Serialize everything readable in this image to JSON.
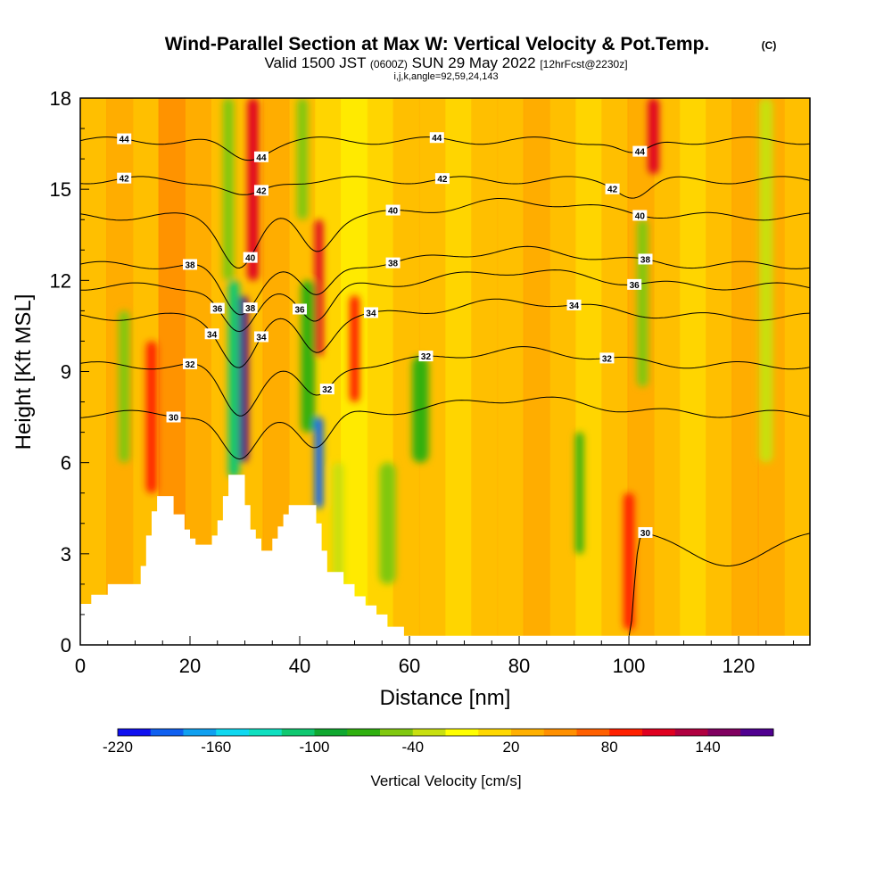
{
  "header": {
    "title": "Wind-Parallel Section at Max W: Vertical Velocity & Pot.Temp.",
    "copyright": "(C)",
    "valid_prefix": "Valid 1500 JST",
    "utc": "(0600Z)",
    "valid_date": "SUN 29 May 2022",
    "forecast": "[12hrFcst@2230z]",
    "indices": "i,j,k,angle=92,59,24,143"
  },
  "chart_data": {
    "type": "heatmap",
    "xlabel": "Distance [nm]",
    "ylabel": "Height [Kft MSL]",
    "xlim": [
      0,
      133
    ],
    "ylim": [
      0,
      18
    ],
    "xticks": [
      "0",
      "20",
      "40",
      "60",
      "80",
      "100",
      "120"
    ],
    "xtick_values": [
      0,
      20,
      40,
      60,
      80,
      100,
      120
    ],
    "yticks": [
      "0",
      "3",
      "6",
      "9",
      "12",
      "15",
      "18"
    ],
    "ytick_values": [
      0,
      3,
      6,
      9,
      12,
      15,
      18
    ],
    "colorbar": {
      "label": "Vertical Velocity [cm/s]",
      "tick_labels": [
        "-220",
        "-160",
        "-100",
        "-40",
        "20",
        "80",
        "140"
      ],
      "colors": [
        "#1010f0",
        "#1060f0",
        "#10a0f0",
        "#10d8f0",
        "#10e0c0",
        "#10c870",
        "#10a830",
        "#30b010",
        "#80c810",
        "#c8e010",
        "#ffff00",
        "#ffd800",
        "#ffb000",
        "#ff9000",
        "#ff6000",
        "#ff2000",
        "#e00020",
        "#b00040",
        "#800060",
        "#500090"
      ]
    },
    "terrain": [
      [
        0,
        1.35
      ],
      [
        2,
        1.35
      ],
      [
        2,
        1.65
      ],
      [
        5,
        1.65
      ],
      [
        5,
        2.0
      ],
      [
        11,
        2.0
      ],
      [
        11,
        2.6
      ],
      [
        12,
        2.6
      ],
      [
        12,
        3.6
      ],
      [
        13,
        3.6
      ],
      [
        13,
        4.4
      ],
      [
        14,
        4.4
      ],
      [
        14,
        4.9
      ],
      [
        17,
        4.9
      ],
      [
        17,
        4.3
      ],
      [
        19,
        4.3
      ],
      [
        19,
        3.8
      ],
      [
        20,
        3.8
      ],
      [
        20,
        3.5
      ],
      [
        21,
        3.5
      ],
      [
        21,
        3.3
      ],
      [
        24,
        3.3
      ],
      [
        24,
        3.6
      ],
      [
        25,
        3.6
      ],
      [
        25,
        4.1
      ],
      [
        26,
        4.1
      ],
      [
        26,
        4.9
      ],
      [
        27,
        4.9
      ],
      [
        27,
        5.6
      ],
      [
        30,
        5.6
      ],
      [
        30,
        4.6
      ],
      [
        31,
        4.6
      ],
      [
        31,
        3.8
      ],
      [
        32,
        3.8
      ],
      [
        32,
        3.5
      ],
      [
        33,
        3.5
      ],
      [
        33,
        3.1
      ],
      [
        35,
        3.1
      ],
      [
        35,
        3.5
      ],
      [
        36,
        3.5
      ],
      [
        36,
        3.9
      ],
      [
        37,
        3.9
      ],
      [
        37,
        4.3
      ],
      [
        38,
        4.3
      ],
      [
        38,
        4.6
      ],
      [
        43,
        4.6
      ],
      [
        43,
        4.0
      ],
      [
        44,
        4.0
      ],
      [
        44,
        3.1
      ],
      [
        45,
        3.1
      ],
      [
        45,
        2.4
      ],
      [
        48,
        2.4
      ],
      [
        48,
        2.0
      ],
      [
        50,
        2.0
      ],
      [
        50,
        1.6
      ],
      [
        52,
        1.6
      ],
      [
        52,
        1.3
      ],
      [
        54,
        1.3
      ],
      [
        54,
        1.0
      ],
      [
        56,
        1.0
      ],
      [
        56,
        0.6
      ],
      [
        59,
        0.6
      ],
      [
        59,
        0.3
      ],
      [
        62,
        0.3
      ],
      [
        62,
        0.3
      ]
    ],
    "w_features": [
      {
        "x": 29.5,
        "y1": 6.0,
        "y2": 11.5,
        "w": 160,
        "width": 2.2
      },
      {
        "x": 28.0,
        "y1": 5.5,
        "y2": 12.0,
        "w": -120,
        "width": 2.0
      },
      {
        "x": 31.5,
        "y1": 12.0,
        "y2": 18.0,
        "w": 100,
        "width": 2.0
      },
      {
        "x": 27.0,
        "y1": 12.0,
        "y2": 18.0,
        "w": -60,
        "width": 2.0
      },
      {
        "x": 43.5,
        "y1": 4.5,
        "y2": 7.5,
        "w": -200,
        "width": 1.5
      },
      {
        "x": 41.5,
        "y1": 7.0,
        "y2": 12.0,
        "w": -70,
        "width": 2.5
      },
      {
        "x": 43.5,
        "y1": 9.5,
        "y2": 14.0,
        "w": 110,
        "width": 1.5
      },
      {
        "x": 40.5,
        "y1": 14.0,
        "y2": 18.0,
        "w": -60,
        "width": 2.0
      },
      {
        "x": 13.0,
        "y1": 5.0,
        "y2": 10.0,
        "w": 80,
        "width": 2.0
      },
      {
        "x": 8.0,
        "y1": 6.0,
        "y2": 11.0,
        "w": -50,
        "width": 2.0
      },
      {
        "x": 50.0,
        "y1": 8.0,
        "y2": 11.5,
        "w": 80,
        "width": 1.8
      },
      {
        "x": 47.0,
        "y1": 2.0,
        "y2": 6.0,
        "w": -40,
        "width": 2.0
      },
      {
        "x": 56.0,
        "y1": 2.0,
        "y2": 6.0,
        "w": -45,
        "width": 3.0
      },
      {
        "x": 62.0,
        "y1": 6.0,
        "y2": 9.5,
        "w": -70,
        "width": 3.0
      },
      {
        "x": 91.0,
        "y1": 3.0,
        "y2": 7.0,
        "w": -80,
        "width": 1.5
      },
      {
        "x": 100.0,
        "y1": 0.5,
        "y2": 5.0,
        "w": 90,
        "width": 2.0
      },
      {
        "x": 104.5,
        "y1": 15.5,
        "y2": 18.0,
        "w": 110,
        "width": 2.0
      },
      {
        "x": 102.5,
        "y1": 8.5,
        "y2": 14.0,
        "w": -50,
        "width": 2.0
      },
      {
        "x": 125.0,
        "y1": 6.0,
        "y2": 18.0,
        "w": -30,
        "width": 2.5
      }
    ],
    "theta_contours": [
      {
        "level": 30,
        "label": "30",
        "y": 7.6,
        "perturbation": "trough",
        "labels_at": [
          17
        ],
        "secondary_labels_at": [
          103
        ],
        "secondary_label": "30"
      },
      {
        "level": 32,
        "label": "32",
        "y": 9.2,
        "perturbation": "trough",
        "labels_at": [
          20,
          45,
          63,
          96
        ]
      },
      {
        "level": 34,
        "label": "34",
        "y": 10.8,
        "perturbation": "trough",
        "labels_at": [
          24,
          33,
          53,
          90
        ]
      },
      {
        "level": 36,
        "label": "36",
        "y": 11.8,
        "perturbation": "trough",
        "labels_at": [
          25,
          40,
          101
        ]
      },
      {
        "level": 38,
        "label": "38",
        "y": 12.5,
        "perturbation": "trough",
        "labels_at": [
          20,
          31,
          57,
          103
        ]
      },
      {
        "level": 40,
        "label": "40",
        "y": 14.1,
        "perturbation": "trough",
        "labels_at": [
          31,
          57,
          102
        ]
      },
      {
        "level": 42,
        "label": "42",
        "y": 15.3,
        "perturbation": "mild",
        "labels_at": [
          8,
          33,
          66,
          97
        ]
      },
      {
        "level": 44,
        "label": "44",
        "y": 16.6,
        "perturbation": "mild",
        "labels_at": [
          8,
          33,
          65,
          102
        ]
      }
    ]
  }
}
